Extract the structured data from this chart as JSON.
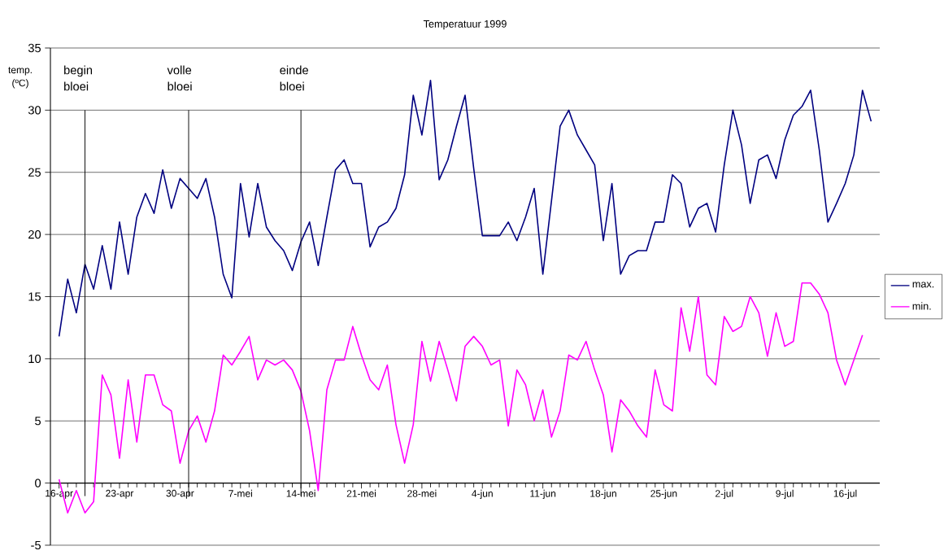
{
  "chart_data": {
    "type": "line",
    "title": "Temperatuur 1999",
    "ylabel": "temp. (ºC)",
    "x": [
      "1999-04-16",
      "1999-04-17",
      "1999-04-18",
      "1999-04-19",
      "1999-04-20",
      "1999-04-21",
      "1999-04-22",
      "1999-04-23",
      "1999-04-24",
      "1999-04-25",
      "1999-04-26",
      "1999-04-27",
      "1999-04-28",
      "1999-04-29",
      "1999-04-30",
      "1999-05-01",
      "1999-05-02",
      "1999-05-03",
      "1999-05-04",
      "1999-05-05",
      "1999-05-06",
      "1999-05-07",
      "1999-05-08",
      "1999-05-09",
      "1999-05-10",
      "1999-05-11",
      "1999-05-12",
      "1999-05-13",
      "1999-05-14",
      "1999-05-15",
      "1999-05-16",
      "1999-05-17",
      "1999-05-18",
      "1999-05-19",
      "1999-05-20",
      "1999-05-21",
      "1999-05-22",
      "1999-05-23",
      "1999-05-24",
      "1999-05-25",
      "1999-05-26",
      "1999-05-27",
      "1999-05-28",
      "1999-05-29",
      "1999-05-30",
      "1999-05-31",
      "1999-06-01",
      "1999-06-02",
      "1999-06-03",
      "1999-06-04",
      "1999-06-05",
      "1999-06-06",
      "1999-06-07",
      "1999-06-08",
      "1999-06-09",
      "1999-06-10",
      "1999-06-11",
      "1999-06-12",
      "1999-06-13",
      "1999-06-14",
      "1999-06-15",
      "1999-06-16",
      "1999-06-17",
      "1999-06-18",
      "1999-06-19",
      "1999-06-20",
      "1999-06-21",
      "1999-06-22",
      "1999-06-23",
      "1999-06-24",
      "1999-06-25",
      "1999-06-26",
      "1999-06-27",
      "1999-06-28",
      "1999-06-29",
      "1999-06-30",
      "1999-07-01",
      "1999-07-02",
      "1999-07-03",
      "1999-07-04",
      "1999-07-05",
      "1999-07-06",
      "1999-07-07",
      "1999-07-08",
      "1999-07-09",
      "1999-07-10",
      "1999-07-11",
      "1999-07-12",
      "1999-07-13",
      "1999-07-14",
      "1999-07-15",
      "1999-07-16",
      "1999-07-17",
      "1999-07-18",
      "1999-07-19"
    ],
    "series": [
      {
        "name": "max.",
        "color": "#000080",
        "values": [
          11.8,
          16.4,
          13.7,
          17.6,
          15.6,
          19.1,
          15.6,
          21.0,
          16.8,
          21.4,
          23.3,
          21.7,
          25.2,
          22.1,
          24.5,
          23.7,
          22.9,
          24.5,
          21.4,
          16.8,
          14.9,
          24.1,
          19.8,
          24.1,
          20.6,
          19.5,
          18.7,
          17.1,
          19.4,
          21.0,
          17.5,
          21.4,
          25.2,
          26.0,
          24.1,
          24.1,
          19.0,
          20.6,
          21.0,
          22.1,
          24.8,
          31.2,
          28.0,
          32.4,
          24.4,
          26.0,
          28.7,
          31.2,
          25.3,
          19.9,
          19.9,
          19.9,
          21.0,
          19.5,
          21.4,
          23.7,
          16.8,
          22.7,
          28.7,
          30.0,
          28.0,
          26.8,
          25.6,
          19.5,
          24.1,
          16.8,
          18.3,
          18.7,
          18.7,
          21.0,
          21.0,
          24.8,
          24.1,
          20.6,
          22.1,
          22.5,
          20.2,
          25.6,
          30.0,
          27.2,
          22.5,
          26.0,
          26.4,
          24.5,
          27.6,
          29.6,
          30.3,
          31.6,
          26.8,
          21.0,
          22.5,
          24.1,
          26.4,
          31.6,
          29.1
        ]
      },
      {
        "name": "min.",
        "color": "#ff00ff",
        "values": [
          0.3,
          -2.4,
          -0.6,
          -2.4,
          -1.5,
          8.7,
          7.1,
          2.0,
          8.3,
          3.3,
          8.7,
          8.7,
          6.3,
          5.8,
          1.6,
          4.2,
          5.4,
          3.3,
          5.8,
          10.3,
          9.5,
          10.6,
          11.8,
          8.3,
          9.9,
          9.5,
          9.9,
          9.1,
          7.4,
          4.2,
          -0.6,
          7.5,
          9.9,
          9.9,
          12.6,
          10.3,
          8.3,
          7.5,
          9.5,
          4.7,
          1.6,
          4.7,
          11.4,
          8.2,
          11.4,
          9.1,
          6.6,
          11.0,
          11.8,
          11.0,
          9.5,
          9.9,
          4.6,
          9.1,
          7.9,
          5.0,
          7.5,
          3.7,
          5.8,
          10.3,
          9.9,
          11.4,
          9.1,
          7.1,
          2.5,
          6.7,
          5.8,
          4.6,
          3.7,
          9.1,
          6.3,
          5.8,
          14.1,
          10.6,
          15.0,
          8.7,
          7.9,
          13.4,
          12.2,
          12.6,
          15.0,
          13.7,
          10.2,
          13.7,
          11.0,
          11.4,
          16.1,
          16.1,
          15.2,
          13.7,
          9.9,
          7.9,
          9.9,
          11.9,
          null
        ]
      }
    ],
    "xlim": [
      "1999-04-15",
      "1999-07-20"
    ],
    "xticks": [
      {
        "value": "1999-04-16",
        "label": "16-apr"
      },
      {
        "value": "1999-04-23",
        "label": "23-apr"
      },
      {
        "value": "1999-04-30",
        "label": "30-apr"
      },
      {
        "value": "1999-05-07",
        "label": "7-mei"
      },
      {
        "value": "1999-05-14",
        "label": "14-mei"
      },
      {
        "value": "1999-05-21",
        "label": "21-mei"
      },
      {
        "value": "1999-05-28",
        "label": "28-mei"
      },
      {
        "value": "1999-06-04",
        "label": "4-jun"
      },
      {
        "value": "1999-06-11",
        "label": "11-jun"
      },
      {
        "value": "1999-06-18",
        "label": "18-jun"
      },
      {
        "value": "1999-06-25",
        "label": "25-jun"
      },
      {
        "value": "1999-07-02",
        "label": "2-jul"
      },
      {
        "value": "1999-07-09",
        "label": "9-jul"
      },
      {
        "value": "1999-07-16",
        "label": "16-jul"
      }
    ],
    "ylim": [
      -5,
      35
    ],
    "yticks": [
      -5,
      0,
      5,
      10,
      15,
      20,
      25,
      30,
      35
    ],
    "ref_lines": [
      {
        "axis": "x",
        "value": "1999-04-19",
        "label": "begin bloei",
        "color": "#000000"
      },
      {
        "axis": "x",
        "value": "1999-05-01",
        "label": "volle bloei",
        "color": "#000000"
      },
      {
        "axis": "x",
        "value": "1999-05-14",
        "label": "einde bloei",
        "color": "#000000"
      }
    ],
    "grid": "y",
    "legend": "right",
    "marker": "none",
    "line_style": "solid"
  }
}
